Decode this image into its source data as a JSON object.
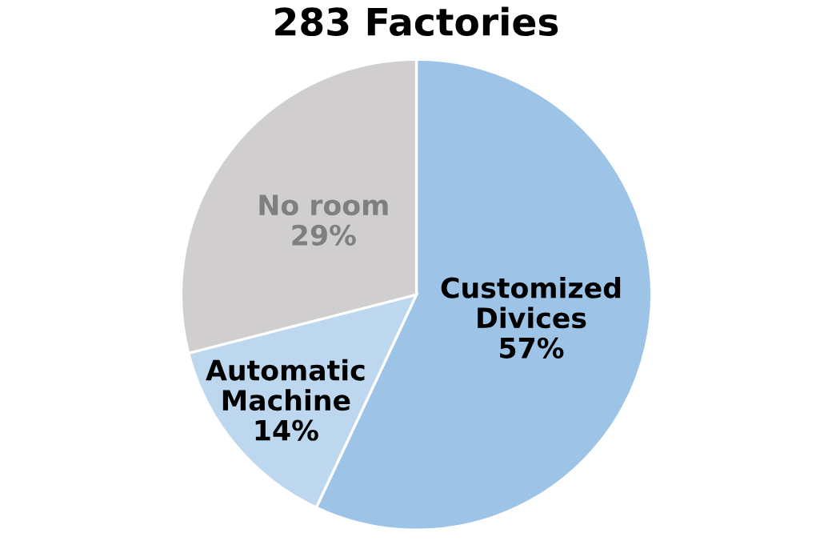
{
  "chart_data": {
    "type": "pie",
    "title": "283 Factories",
    "categories": [
      "Customized\nDivices",
      "Automatic\nMachine",
      "No room"
    ],
    "values": [
      57,
      14,
      29
    ],
    "colors": [
      "#9dc3e6",
      "#bdd7ee",
      "#d0cece"
    ],
    "value_labels": [
      "57%",
      "14%",
      "29%"
    ]
  }
}
